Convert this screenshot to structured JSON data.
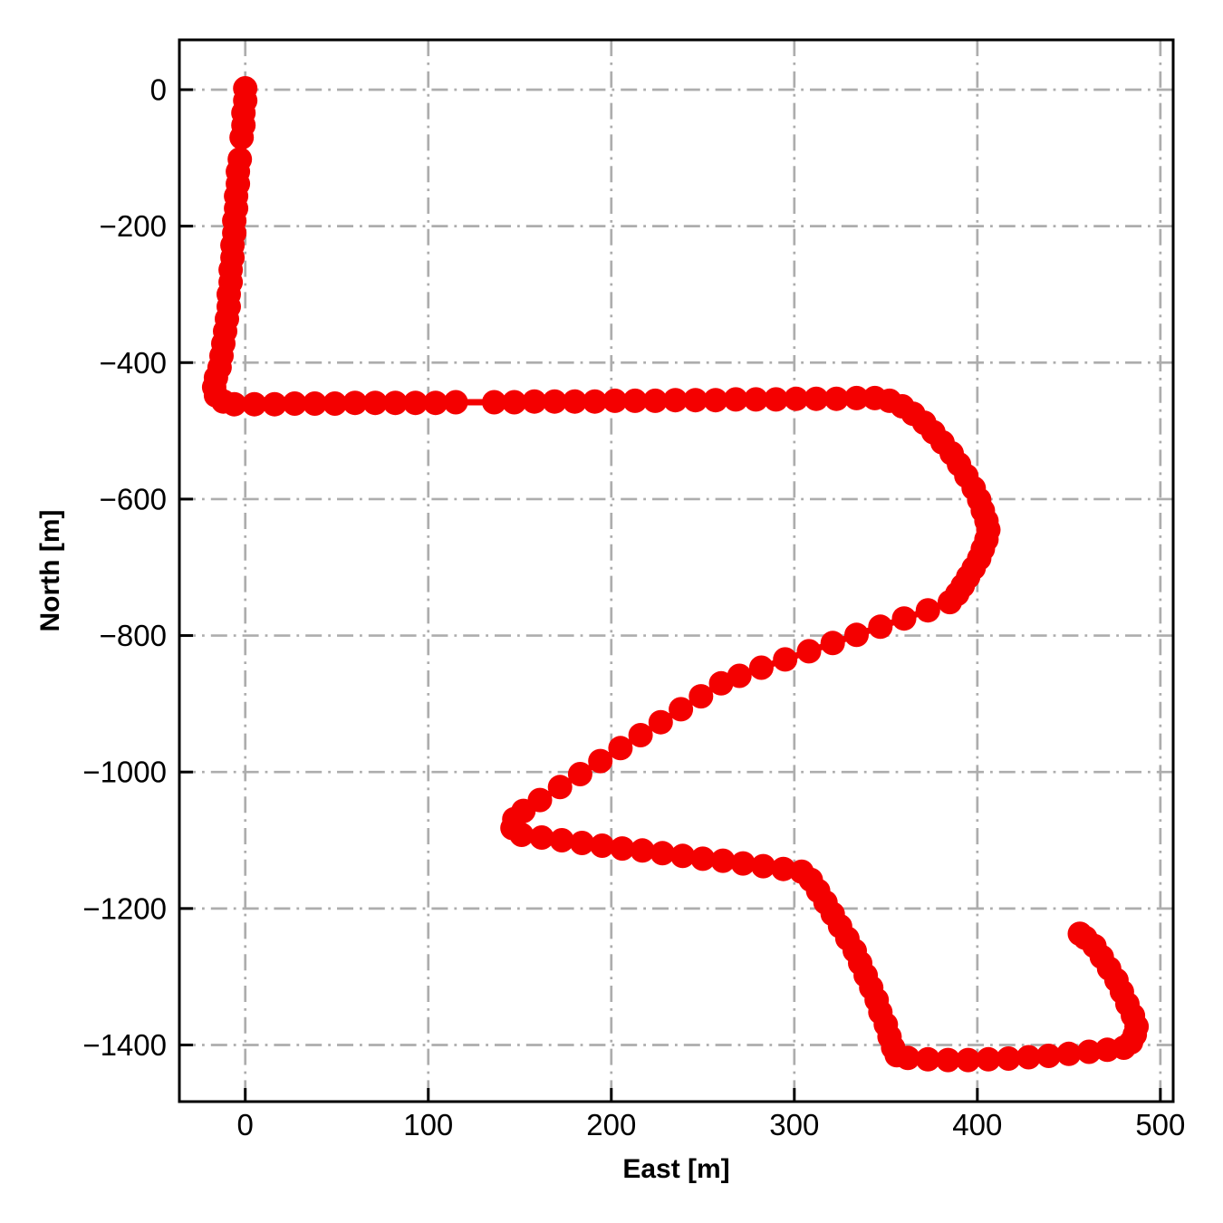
{
  "figure": {
    "background": "#ffffff"
  },
  "chart_data": {
    "type": "scatter",
    "title": "",
    "xlabel": "East [m]",
    "ylabel": "North [m]",
    "xlim": [
      -36,
      507
    ],
    "ylim": [
      -1483,
      73
    ],
    "x_ticks": [
      0,
      100,
      200,
      300,
      400,
      500
    ],
    "y_ticks": [
      0,
      -200,
      -400,
      -600,
      -800,
      -1000,
      -1200,
      -1400
    ],
    "grid": true,
    "grid_style": "dash-dot",
    "grid_color": "#adadad",
    "axis_color": "#000000",
    "legend": "none",
    "series": [
      {
        "name": "trajectory",
        "color": "#f40000",
        "marker": "circle",
        "points": [
          [
            0,
            2
          ],
          [
            0,
            -16
          ],
          [
            -1,
            -34
          ],
          [
            -1,
            -52
          ],
          [
            -2,
            -70
          ],
          [
            -3,
            -102
          ],
          [
            -4,
            -120
          ],
          [
            -4,
            -138
          ],
          [
            -5,
            -156
          ],
          [
            -5,
            -174
          ],
          [
            -6,
            -192
          ],
          [
            -6,
            -210
          ],
          [
            -7,
            -228
          ],
          [
            -7,
            -246
          ],
          [
            -8,
            -264
          ],
          [
            -8,
            -282
          ],
          [
            -9,
            -300
          ],
          [
            -9,
            -318
          ],
          [
            -10,
            -336
          ],
          [
            -11,
            -354
          ],
          [
            -12,
            -372
          ],
          [
            -13,
            -390
          ],
          [
            -14,
            -407
          ],
          [
            -16,
            -422
          ],
          [
            -17,
            -436
          ],
          [
            -16,
            -448
          ],
          [
            -12,
            -457
          ],
          [
            -6,
            -461
          ],
          [
            5,
            -461
          ],
          [
            16,
            -461
          ],
          [
            27,
            -460
          ],
          [
            38,
            -460
          ],
          [
            49,
            -460
          ],
          [
            60,
            -459
          ],
          [
            71,
            -459
          ],
          [
            82,
            -459
          ],
          [
            93,
            -459
          ],
          [
            104,
            -459
          ],
          [
            115,
            -458
          ],
          [
            136,
            -458
          ],
          [
            147,
            -458
          ],
          [
            158,
            -457
          ],
          [
            169,
            -457
          ],
          [
            180,
            -457
          ],
          [
            191,
            -457
          ],
          [
            202,
            -456
          ],
          [
            213,
            -456
          ],
          [
            224,
            -456
          ],
          [
            235,
            -455
          ],
          [
            246,
            -455
          ],
          [
            257,
            -455
          ],
          [
            268,
            -454
          ],
          [
            279,
            -454
          ],
          [
            290,
            -454
          ],
          [
            301,
            -453
          ],
          [
            312,
            -453
          ],
          [
            323,
            -453
          ],
          [
            334,
            -452
          ],
          [
            344,
            -452
          ],
          [
            352,
            -456
          ],
          [
            359,
            -464
          ],
          [
            365,
            -475
          ],
          [
            371,
            -488
          ],
          [
            376,
            -502
          ],
          [
            381,
            -517
          ],
          [
            386,
            -533
          ],
          [
            390,
            -549
          ],
          [
            394,
            -566
          ],
          [
            398,
            -584
          ],
          [
            401,
            -601
          ],
          [
            403,
            -617
          ],
          [
            405,
            -632
          ],
          [
            406,
            -645
          ],
          [
            405,
            -659
          ],
          [
            403,
            -673
          ],
          [
            401,
            -687
          ],
          [
            398,
            -701
          ],
          [
            395,
            -714
          ],
          [
            392,
            -727
          ],
          [
            389,
            -739
          ],
          [
            385,
            -751
          ],
          [
            373,
            -763
          ],
          [
            360,
            -775
          ],
          [
            347,
            -787
          ],
          [
            334,
            -799
          ],
          [
            321,
            -811
          ],
          [
            308,
            -823
          ],
          [
            295,
            -835
          ],
          [
            282,
            -847
          ],
          [
            270,
            -859
          ],
          [
            260,
            -870
          ],
          [
            249,
            -889
          ],
          [
            238,
            -908
          ],
          [
            227,
            -927
          ],
          [
            216,
            -946
          ],
          [
            205,
            -965
          ],
          [
            194,
            -984
          ],
          [
            183,
            -1003
          ],
          [
            172,
            -1022
          ],
          [
            161,
            -1041
          ],
          [
            152,
            -1057
          ],
          [
            147,
            -1069
          ],
          [
            146,
            -1082
          ],
          [
            151,
            -1092
          ],
          [
            162,
            -1096
          ],
          [
            173,
            -1100
          ],
          [
            184,
            -1104
          ],
          [
            195,
            -1108
          ],
          [
            206,
            -1112
          ],
          [
            217,
            -1115
          ],
          [
            228,
            -1119
          ],
          [
            239,
            -1123
          ],
          [
            250,
            -1127
          ],
          [
            261,
            -1130
          ],
          [
            272,
            -1134
          ],
          [
            283,
            -1138
          ],
          [
            294,
            -1142
          ],
          [
            304,
            -1146
          ],
          [
            309,
            -1158
          ],
          [
            313,
            -1174
          ],
          [
            317,
            -1191
          ],
          [
            321,
            -1208
          ],
          [
            325,
            -1226
          ],
          [
            329,
            -1244
          ],
          [
            333,
            -1262
          ],
          [
            336,
            -1280
          ],
          [
            339,
            -1298
          ],
          [
            342,
            -1316
          ],
          [
            345,
            -1334
          ],
          [
            347,
            -1352
          ],
          [
            350,
            -1370
          ],
          [
            352,
            -1388
          ],
          [
            354,
            -1404
          ],
          [
            356,
            -1415
          ],
          [
            362,
            -1419
          ],
          [
            373,
            -1421
          ],
          [
            384,
            -1422
          ],
          [
            395,
            -1422
          ],
          [
            406,
            -1421
          ],
          [
            417,
            -1420
          ],
          [
            428,
            -1418
          ],
          [
            439,
            -1416
          ],
          [
            450,
            -1413
          ],
          [
            461,
            -1410
          ],
          [
            471,
            -1407
          ],
          [
            480,
            -1404
          ],
          [
            484,
            -1396
          ],
          [
            486,
            -1385
          ],
          [
            487,
            -1373
          ],
          [
            485,
            -1357
          ],
          [
            482,
            -1340
          ],
          [
            479,
            -1322
          ],
          [
            476,
            -1305
          ],
          [
            472,
            -1288
          ],
          [
            468,
            -1271
          ],
          [
            464,
            -1255
          ],
          [
            459,
            -1243
          ],
          [
            456,
            -1237
          ]
        ]
      }
    ]
  }
}
